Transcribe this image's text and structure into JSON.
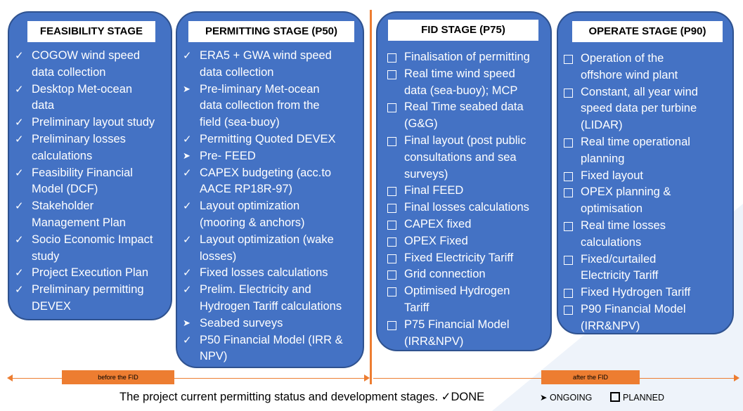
{
  "stages": [
    {
      "title": "FEASIBILITY STAGE",
      "items": [
        {
          "mark": "done",
          "text": "COGOW wind speed"
        },
        {
          "mark": "",
          "text": "data collection"
        },
        {
          "mark": "done",
          "text": "Desktop Met-ocean"
        },
        {
          "mark": "",
          "text": "data"
        },
        {
          "mark": "done",
          "text": "Preliminary layout study"
        },
        {
          "mark": "done",
          "text": "Preliminary losses"
        },
        {
          "mark": "",
          "text": "calculations"
        },
        {
          "mark": "done",
          "text": "Feasibility Financial"
        },
        {
          "mark": "",
          "text": "Model (DCF)"
        },
        {
          "mark": "done",
          "text": "Stakeholder"
        },
        {
          "mark": "",
          "text": "Management Plan"
        },
        {
          "mark": "done",
          "text": "Socio Economic Impact"
        },
        {
          "mark": "",
          "text": "study"
        },
        {
          "mark": "done",
          "text": "Project Execution Plan"
        },
        {
          "mark": "done",
          "text": "Preliminary permitting"
        },
        {
          "mark": "",
          "text": "DEVEX"
        }
      ]
    },
    {
      "title": "PERMITTING STAGE (P50)",
      "items": [
        {
          "mark": "done",
          "text": "ERA5 + GWA wind speed"
        },
        {
          "mark": "",
          "text": "data collection"
        },
        {
          "mark": "ongoing",
          "text": "Pre-liminary Met-ocean"
        },
        {
          "mark": "",
          "text": "data collection from the"
        },
        {
          "mark": "",
          "text": "field (sea-buoy)"
        },
        {
          "mark": "done",
          "text": "Permitting Quoted DEVEX"
        },
        {
          "mark": "ongoing",
          "text": "Pre- FEED"
        },
        {
          "mark": "done",
          "text": "CAPEX budgeting (acc.to"
        },
        {
          "mark": "",
          "text": "AACE RP18R-97)"
        },
        {
          "mark": "done",
          "text": "Layout optimization"
        },
        {
          "mark": "",
          "text": "(mooring & anchors)"
        },
        {
          "mark": "done",
          "text": "Layout optimization (wake"
        },
        {
          "mark": "",
          "text": "losses)"
        },
        {
          "mark": "done",
          "text": "Fixed losses calculations"
        },
        {
          "mark": "done",
          "text": "Prelim. Electricity and"
        },
        {
          "mark": "",
          "text": "Hydrogen Tariff calculations"
        },
        {
          "mark": "ongoing",
          "text": "Seabed surveys"
        },
        {
          "mark": "done",
          "text": "P50 Financial Model (IRR &"
        },
        {
          "mark": "",
          "text": "NPV)"
        }
      ]
    },
    {
      "title": "FID STAGE (P75)",
      "items": [
        {
          "mark": "planned",
          "text": "Finalisation of permitting"
        },
        {
          "mark": "planned",
          "text": "Real time wind speed"
        },
        {
          "mark": "",
          "text": "data (sea-buoy); MCP"
        },
        {
          "mark": "planned",
          "text": "Real Time seabed data"
        },
        {
          "mark": "",
          "text": "(G&G)"
        },
        {
          "mark": "planned",
          "text": "Final layout (post public"
        },
        {
          "mark": "",
          "text": "consultations and sea"
        },
        {
          "mark": "",
          "text": "surveys)"
        },
        {
          "mark": "planned",
          "text": "Final FEED"
        },
        {
          "mark": "planned",
          "text": "Final losses calculations"
        },
        {
          "mark": "planned",
          "text": "CAPEX fixed"
        },
        {
          "mark": "planned",
          "text": "OPEX Fixed"
        },
        {
          "mark": "planned",
          "text": "Fixed Electricity Tariff"
        },
        {
          "mark": "planned",
          "text": "Grid connection"
        },
        {
          "mark": "planned",
          "text": "Optimised Hydrogen"
        },
        {
          "mark": "",
          "text": "Tariff"
        },
        {
          "mark": "planned",
          "text": "P75 Financial Model"
        },
        {
          "mark": "",
          "text": "(IRR&NPV)"
        }
      ]
    },
    {
      "title": "OPERATE STAGE (P90)",
      "items": [
        {
          "mark": "planned",
          "text": "Operation of the"
        },
        {
          "mark": "",
          "text": "offshore wind plant"
        },
        {
          "mark": "planned",
          "text": "Constant, all year wind"
        },
        {
          "mark": "",
          "text": "speed data per turbine"
        },
        {
          "mark": "",
          "text": "(LIDAR)"
        },
        {
          "mark": "planned",
          "text": "Real time operational"
        },
        {
          "mark": "",
          "text": "planning"
        },
        {
          "mark": "planned",
          "text": "Fixed layout"
        },
        {
          "mark": "planned",
          "text": "OPEX planning &"
        },
        {
          "mark": "",
          "text": "optimisation"
        },
        {
          "mark": "planned",
          "text": "Real time losses"
        },
        {
          "mark": "",
          "text": "calculations"
        },
        {
          "mark": "planned",
          "text": "Fixed/curtailed"
        },
        {
          "mark": "",
          "text": "Electricity Tariff"
        },
        {
          "mark": "planned",
          "text": "Fixed Hydrogen Tariff"
        },
        {
          "mark": "planned",
          "text": "P90 Financial Model"
        },
        {
          "mark": "",
          "text": "(IRR&NPV)"
        }
      ]
    }
  ],
  "timeline": {
    "before_label": "before the FID",
    "after_label": "after the FID"
  },
  "caption": {
    "text": "The project current permitting status and development stages.",
    "legend_done_symbol": "✓",
    "legend_done": "DONE",
    "legend_ongoing_symbol": "➤",
    "legend_ongoing": "ONGOING",
    "legend_planned": "PLANNED"
  },
  "colors": {
    "stage_fill": "#4472c4",
    "stage_border": "#2f528f",
    "accent": "#ed7d31"
  }
}
